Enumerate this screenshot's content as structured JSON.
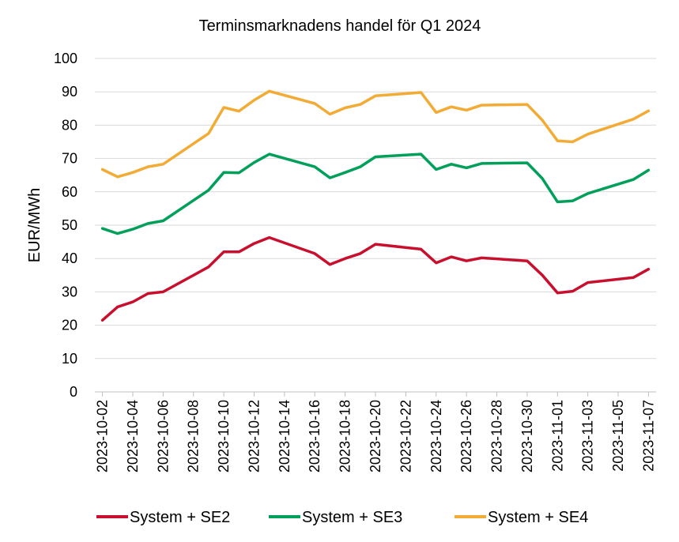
{
  "chart_data": {
    "type": "line",
    "title": "Terminsmarknadens handel för Q1 2024",
    "xlabel": "",
    "ylabel": "EUR/MWh",
    "ylim": [
      0,
      100
    ],
    "yticks": [
      "0",
      "10",
      "20",
      "30",
      "40",
      "50",
      "60",
      "70",
      "80",
      "90",
      "100"
    ],
    "grid": true,
    "legend_position": "bottom",
    "x": [
      "2023-10-02",
      "2023-10-03",
      "2023-10-04",
      "2023-10-05",
      "2023-10-06",
      "2023-10-09",
      "2023-10-10",
      "2023-10-11",
      "2023-10-12",
      "2023-10-13",
      "2023-10-16",
      "2023-10-17",
      "2023-10-18",
      "2023-10-19",
      "2023-10-20",
      "2023-10-23",
      "2023-10-24",
      "2023-10-25",
      "2023-10-26",
      "2023-10-27",
      "2023-10-30",
      "2023-10-31",
      "2023-11-01",
      "2023-11-02",
      "2023-11-03",
      "2023-11-06",
      "2023-11-07"
    ],
    "xticks": [
      "2023-10-02",
      "2023-10-04",
      "2023-10-06",
      "2023-10-08",
      "2023-10-10",
      "2023-10-12",
      "2023-10-14",
      "2023-10-16",
      "2023-10-18",
      "2023-10-20",
      "2023-10-22",
      "2023-10-24",
      "2023-10-26",
      "2023-10-28",
      "2023-10-30",
      "2023-11-01",
      "2023-11-03",
      "2023-11-05",
      "2023-11-07"
    ],
    "series": [
      {
        "name": "System + SE2",
        "color": "#c8102e",
        "values": [
          21.5,
          25.5,
          27.0,
          29.5,
          30.0,
          37.5,
          42.0,
          42.0,
          44.5,
          46.3,
          41.5,
          38.2,
          40.0,
          41.5,
          44.3,
          42.8,
          38.7,
          40.5,
          39.3,
          40.2,
          39.3,
          35.0,
          29.7,
          30.2,
          32.8,
          34.3,
          36.8
        ]
      },
      {
        "name": "System + SE3",
        "color": "#00a05a",
        "values": [
          49.0,
          47.5,
          48.8,
          50.5,
          51.3,
          60.5,
          65.8,
          65.7,
          68.8,
          71.3,
          67.5,
          64.2,
          65.8,
          67.5,
          70.5,
          71.3,
          66.7,
          68.3,
          67.2,
          68.5,
          68.7,
          64.0,
          57.0,
          57.3,
          59.5,
          63.7,
          66.5
        ]
      },
      {
        "name": "System + SE4",
        "color": "#f2ab35",
        "values": [
          66.7,
          64.5,
          65.8,
          67.5,
          68.3,
          77.5,
          85.3,
          84.2,
          87.5,
          90.2,
          86.5,
          83.3,
          85.2,
          86.2,
          88.8,
          89.8,
          83.8,
          85.5,
          84.5,
          86.0,
          86.2,
          81.5,
          75.3,
          75.0,
          77.3,
          81.8,
          84.3
        ]
      }
    ]
  }
}
